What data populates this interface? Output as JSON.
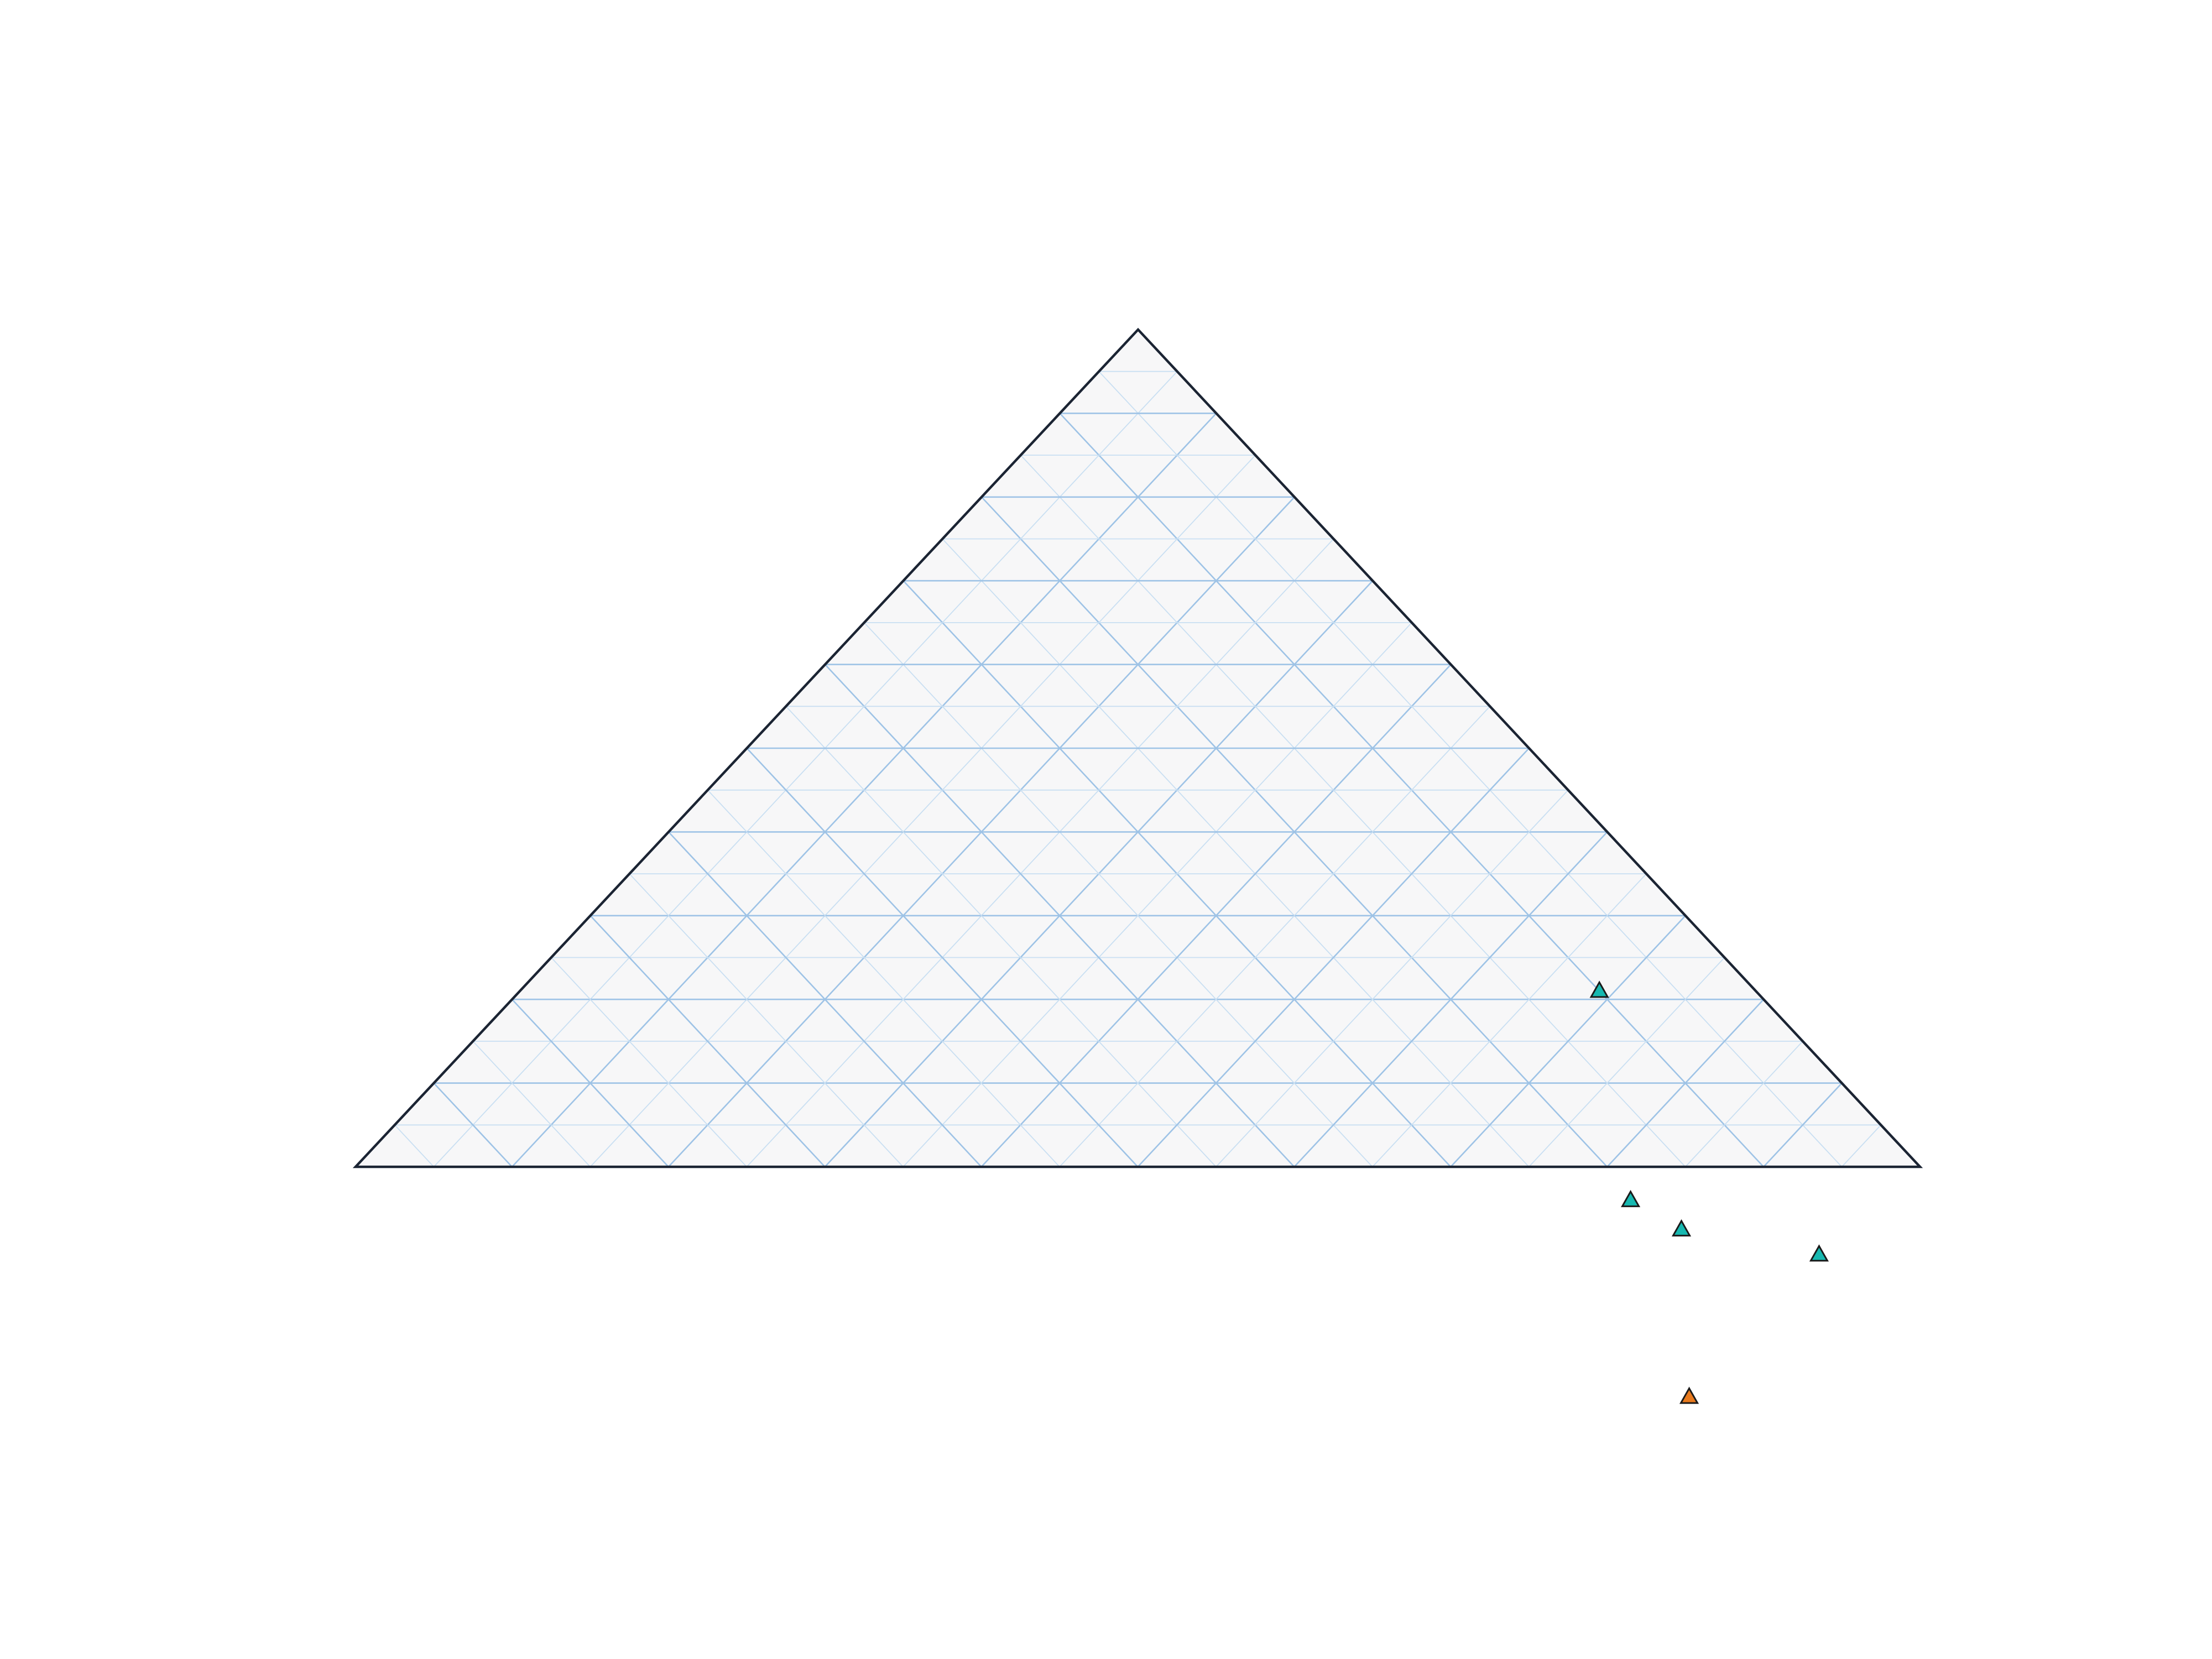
{
  "chart_data": {
    "type": "scatter",
    "subtype": "ternary",
    "title": "",
    "axes": [
      "",
      "",
      ""
    ],
    "grid": true,
    "grid_step": 0.05,
    "colors": {
      "background": "#ffffff",
      "triangle_fill": "#f7f7f8",
      "triangle_edge": "#1b2433",
      "grid_major": "#9ec3e6",
      "grid_minor": "#c9dff2",
      "marker_edge": "#1a1a1a"
    },
    "series": [
      {
        "marker": "triangle",
        "color": "#17b8b0",
        "points": [
          {
            "a": 0.21,
            "b": 0.69,
            "c": 0.1
          },
          {
            "a": -0.04,
            "b": 0.835,
            "c": 0.205
          },
          {
            "a": -0.075,
            "b": 0.885,
            "c": 0.19
          },
          {
            "a": -0.105,
            "b": 0.988,
            "c": 0.117
          }
        ]
      },
      {
        "marker": "triangle",
        "color": "#e87a1e",
        "points": [
          {
            "a": -0.275,
            "b": 0.99,
            "c": 0.285
          }
        ]
      }
    ]
  }
}
